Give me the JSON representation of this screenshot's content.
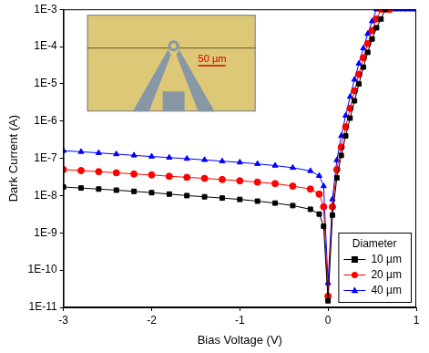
{
  "chart_data": {
    "type": "line",
    "x_label": "Bias Voltage (V)",
    "y_label": "Dark Current (A)",
    "legend_title": "Diameter",
    "legend": "lower right",
    "annotations": [
      "50 µm"
    ],
    "log": "y",
    "grid": false,
    "xlim": [
      -3,
      1
    ],
    "xticks": [
      -3,
      -2,
      -1,
      0,
      1
    ],
    "ylim": [
      1e-11,
      0.001
    ],
    "yticks": [
      {
        "value": 1e-11,
        "label": "1E-11"
      },
      {
        "value": 1e-10,
        "label": "1E-10"
      },
      {
        "value": 1e-09,
        "label": "1E-9"
      },
      {
        "value": 1e-08,
        "label": "1E-8"
      },
      {
        "value": 1e-07,
        "label": "1E-7"
      },
      {
        "value": 1e-06,
        "label": "1E-6"
      },
      {
        "value": 1e-05,
        "label": "1E-5"
      },
      {
        "value": 0.0001,
        "label": "1E-4"
      },
      {
        "value": 0.001,
        "label": "1E-3"
      }
    ],
    "x": [
      -3,
      -2.8,
      -2.6,
      -2.4,
      -2.2,
      -2,
      -1.8,
      -1.6,
      -1.4,
      -1.2,
      -1,
      -0.8,
      -0.6,
      -0.4,
      -0.2,
      -0.1,
      -0.05,
      0,
      0.05,
      0.1,
      0.15,
      0.2,
      0.25,
      0.3,
      0.35,
      0.4,
      0.45,
      0.5,
      0.55,
      0.6,
      0.65,
      0.7,
      0.75,
      0.8,
      0.85,
      0.9,
      0.95,
      1
    ],
    "series": [
      {
        "name": "10 µm",
        "color": "#000000",
        "marker": "square",
        "line_style": "solid",
        "values": [
          1.7e-08,
          1.6e-08,
          1.5e-08,
          1.4e-08,
          1.3e-08,
          1.2e-08,
          1.1e-08,
          1e-08,
          9.3e-09,
          8.6e-09,
          7.9e-09,
          7.1e-09,
          6.3e-09,
          5.4e-09,
          4.3e-09,
          3.2e-09,
          1.5e-09,
          1.5e-11,
          3e-09,
          3e-08,
          1.2e-07,
          4e-07,
          1.2e-06,
          3.5e-06,
          1e-05,
          2.8e-05,
          7e-05,
          0.00016,
          0.00032,
          0.00055,
          0.001,
          null,
          null,
          null,
          null,
          null,
          null,
          null
        ]
      },
      {
        "name": "20 µm",
        "color": "#ff0000",
        "marker": "circle",
        "line_style": "solid",
        "values": [
          5e-08,
          4.7e-08,
          4.4e-08,
          4.1e-08,
          3.8e-08,
          3.6e-08,
          3.3e-08,
          3.1e-08,
          2.9e-08,
          2.7e-08,
          2.5e-08,
          2.3e-08,
          2.1e-08,
          1.8e-08,
          1.5e-08,
          1.1e-08,
          5e-09,
          2e-11,
          5e-09,
          5e-08,
          2e-07,
          7e-07,
          2.2e-06,
          6.5e-06,
          1.8e-05,
          5e-05,
          0.00012,
          0.00027,
          0.00055,
          0.001,
          0.001,
          0.001,
          null,
          null,
          null,
          null,
          null,
          null
        ]
      },
      {
        "name": "40 µm",
        "color": "#0000ff",
        "marker": "triangle",
        "line_style": "solid",
        "values": [
          1.6e-07,
          1.5e-07,
          1.4e-07,
          1.3e-07,
          1.2e-07,
          1.12e-07,
          1.05e-07,
          9.8e-08,
          9.1e-08,
          8.4e-08,
          7.8e-08,
          7.1e-08,
          6.4e-08,
          5.6e-08,
          4.6e-08,
          3.4e-08,
          1.8e-08,
          4.5e-11,
          8e-09,
          9e-08,
          4e-07,
          1.4e-06,
          4.5e-06,
          1.3e-05,
          3.5e-05,
          9e-05,
          0.00022,
          0.00048,
          0.001,
          0.001,
          0.001,
          0.001,
          0.001,
          0.001,
          0.001,
          0.001,
          0.001,
          0.001
        ]
      }
    ]
  }
}
